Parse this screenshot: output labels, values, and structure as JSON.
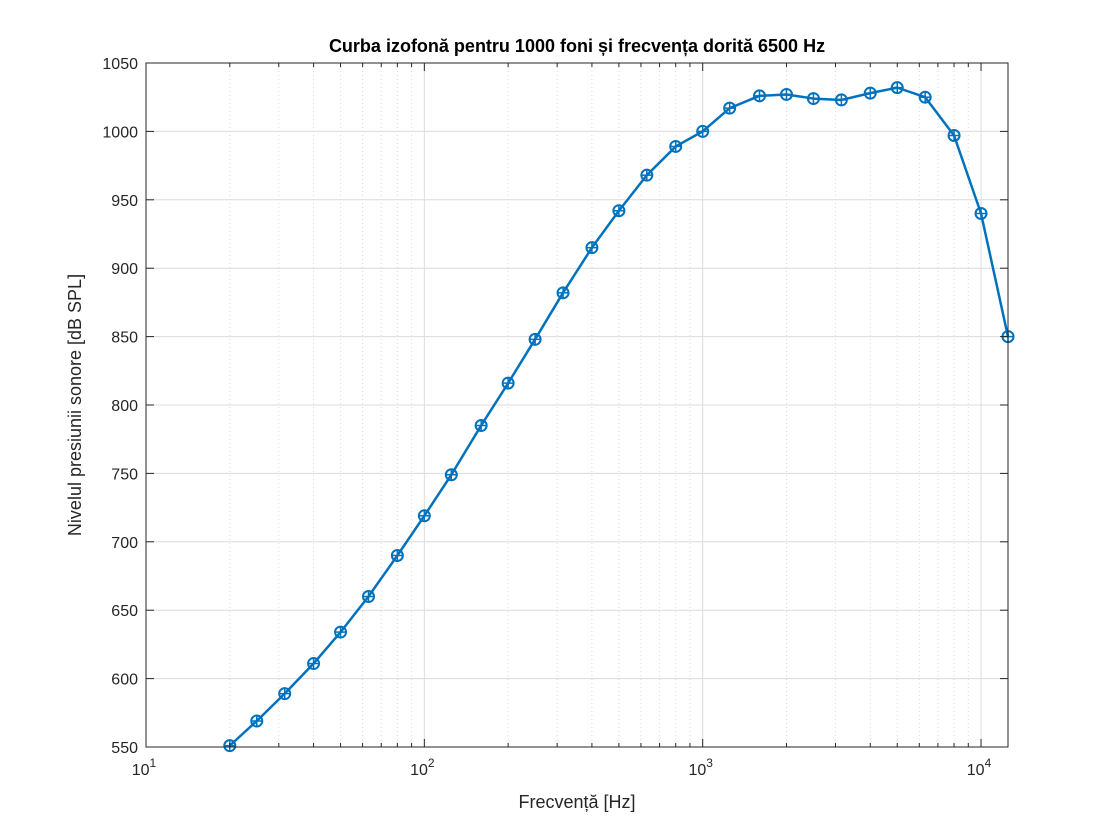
{
  "chart_data": {
    "type": "line",
    "title": "Curba izofonă pentru 1000 foni și frecvența dorită 6500 Hz",
    "xlabel": "Frecvență [Hz]",
    "ylabel": "Nivelul presiunii sonore [dB SPL]",
    "xscale": "log",
    "xlim": [
      10,
      12500
    ],
    "ylim": [
      550,
      1050
    ],
    "grid": true,
    "minor_grid_x": true,
    "line_color": "#0072BD",
    "marker": "circle-plus",
    "x_ticks": [
      {
        "value": 10,
        "base": "10",
        "exp": "1"
      },
      {
        "value": 100,
        "base": "10",
        "exp": "2"
      },
      {
        "value": 1000,
        "base": "10",
        "exp": "3"
      },
      {
        "value": 10000,
        "base": "10",
        "exp": "4"
      }
    ],
    "y_ticks": [
      {
        "value": 550,
        "label": "550"
      },
      {
        "value": 600,
        "label": "600"
      },
      {
        "value": 650,
        "label": "650"
      },
      {
        "value": 700,
        "label": "700"
      },
      {
        "value": 750,
        "label": "750"
      },
      {
        "value": 800,
        "label": "800"
      },
      {
        "value": 850,
        "label": "850"
      },
      {
        "value": 900,
        "label": "900"
      },
      {
        "value": 950,
        "label": "950"
      },
      {
        "value": 1000,
        "label": "1000"
      },
      {
        "value": 1050,
        "label": "1050"
      }
    ],
    "series": [
      {
        "x": [
          20,
          25,
          31.5,
          40,
          50,
          63,
          80,
          100,
          125,
          160,
          200,
          250,
          315,
          400,
          500,
          630,
          800,
          1000,
          1250,
          1600,
          2000,
          2500,
          3150,
          4000,
          5000,
          6300,
          8000,
          10000,
          12500
        ],
        "y": [
          551,
          569,
          589,
          611,
          634,
          660,
          690,
          719,
          749,
          785,
          816,
          848,
          882,
          915,
          942,
          968,
          989,
          1000,
          1017,
          1026,
          1027,
          1024,
          1023,
          1028,
          1032,
          1025,
          997,
          940,
          850
        ]
      }
    ]
  }
}
